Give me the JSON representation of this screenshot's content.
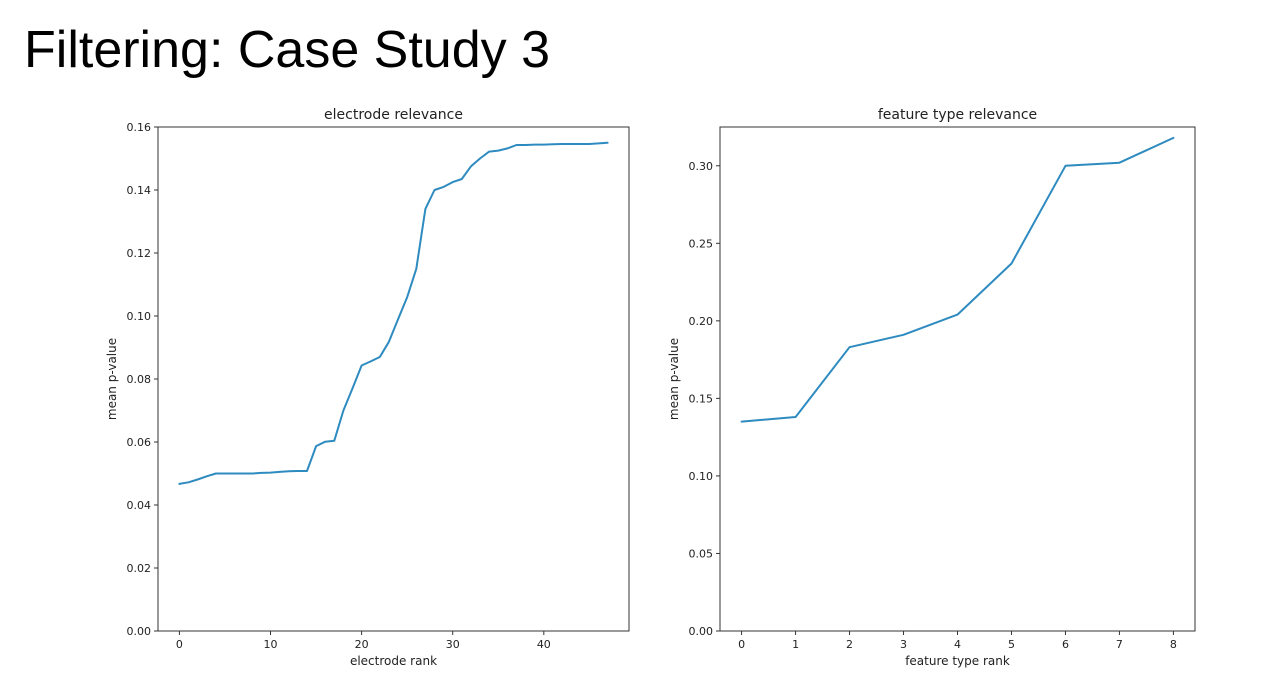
{
  "slide": {
    "title": "Filtering: Case Study 3"
  },
  "colors": {
    "line": "#2e8bc0",
    "axis": "#333333"
  },
  "chart_data": [
    {
      "type": "line",
      "title": "electrode relevance",
      "xlabel": "electrode rank",
      "ylabel": "mean p-value",
      "xlim": [
        -2.35,
        49.35
      ],
      "ylim": [
        0,
        0.16
      ],
      "xticks": [
        0,
        10,
        20,
        30,
        40
      ],
      "xtick_labels": [
        "0",
        "10",
        "20",
        "30",
        "40"
      ],
      "yticks": [
        0,
        0.02,
        0.04,
        0.06,
        0.08,
        0.1,
        0.12,
        0.14,
        0.16
      ],
      "ytick_labels": [
        "0.00",
        "0.02",
        "0.04",
        "0.06",
        "0.08",
        "0.10",
        "0.12",
        "0.14",
        "0.16"
      ],
      "grid": false,
      "series": [
        {
          "x": [
            0,
            1,
            2,
            3,
            4,
            5,
            6,
            7,
            8,
            9,
            10,
            11,
            12,
            13,
            14,
            15,
            16,
            17,
            18,
            19,
            20,
            21,
            22,
            23,
            24,
            25,
            26,
            27,
            28,
            29,
            30,
            31,
            32,
            33,
            34,
            35,
            36,
            37,
            38,
            39,
            40,
            41,
            42,
            43,
            44,
            45,
            46,
            47
          ],
          "y": [
            0.0467,
            0.0472,
            0.0481,
            0.0491,
            0.05,
            0.05,
            0.05,
            0.05,
            0.05,
            0.0502,
            0.0503,
            0.0505,
            0.0507,
            0.0508,
            0.0508,
            0.0587,
            0.0601,
            0.0604,
            0.07,
            0.077,
            0.0843,
            0.0856,
            0.087,
            0.0918,
            0.099,
            0.106,
            0.115,
            0.134,
            0.14,
            0.141,
            0.1425,
            0.1435,
            0.1475,
            0.15,
            0.1522,
            0.1525,
            0.1532,
            0.1543,
            0.1543,
            0.1544,
            0.1544,
            0.1545,
            0.1546,
            0.1546,
            0.1546,
            0.1546,
            0.1548,
            0.155
          ]
        }
      ]
    },
    {
      "type": "line",
      "title": "feature type relevance",
      "xlabel": "feature type rank",
      "ylabel": "mean p-value",
      "xlim": [
        -0.4,
        8.4
      ],
      "ylim": [
        0,
        0.325
      ],
      "xticks": [
        0,
        1,
        2,
        3,
        4,
        5,
        6,
        7,
        8
      ],
      "xtick_labels": [
        "0",
        "1",
        "2",
        "3",
        "4",
        "5",
        "6",
        "7",
        "8"
      ],
      "yticks": [
        0,
        0.05,
        0.1,
        0.15,
        0.2,
        0.25,
        0.3
      ],
      "ytick_labels": [
        "0.00",
        "0.05",
        "0.10",
        "0.15",
        "0.20",
        "0.25",
        "0.30"
      ],
      "grid": false,
      "series": [
        {
          "x": [
            0,
            1,
            2,
            3,
            4,
            5,
            6,
            7,
            8
          ],
          "y": [
            0.135,
            0.138,
            0.183,
            0.191,
            0.204,
            0.237,
            0.3,
            0.302,
            0.318
          ]
        }
      ]
    }
  ]
}
